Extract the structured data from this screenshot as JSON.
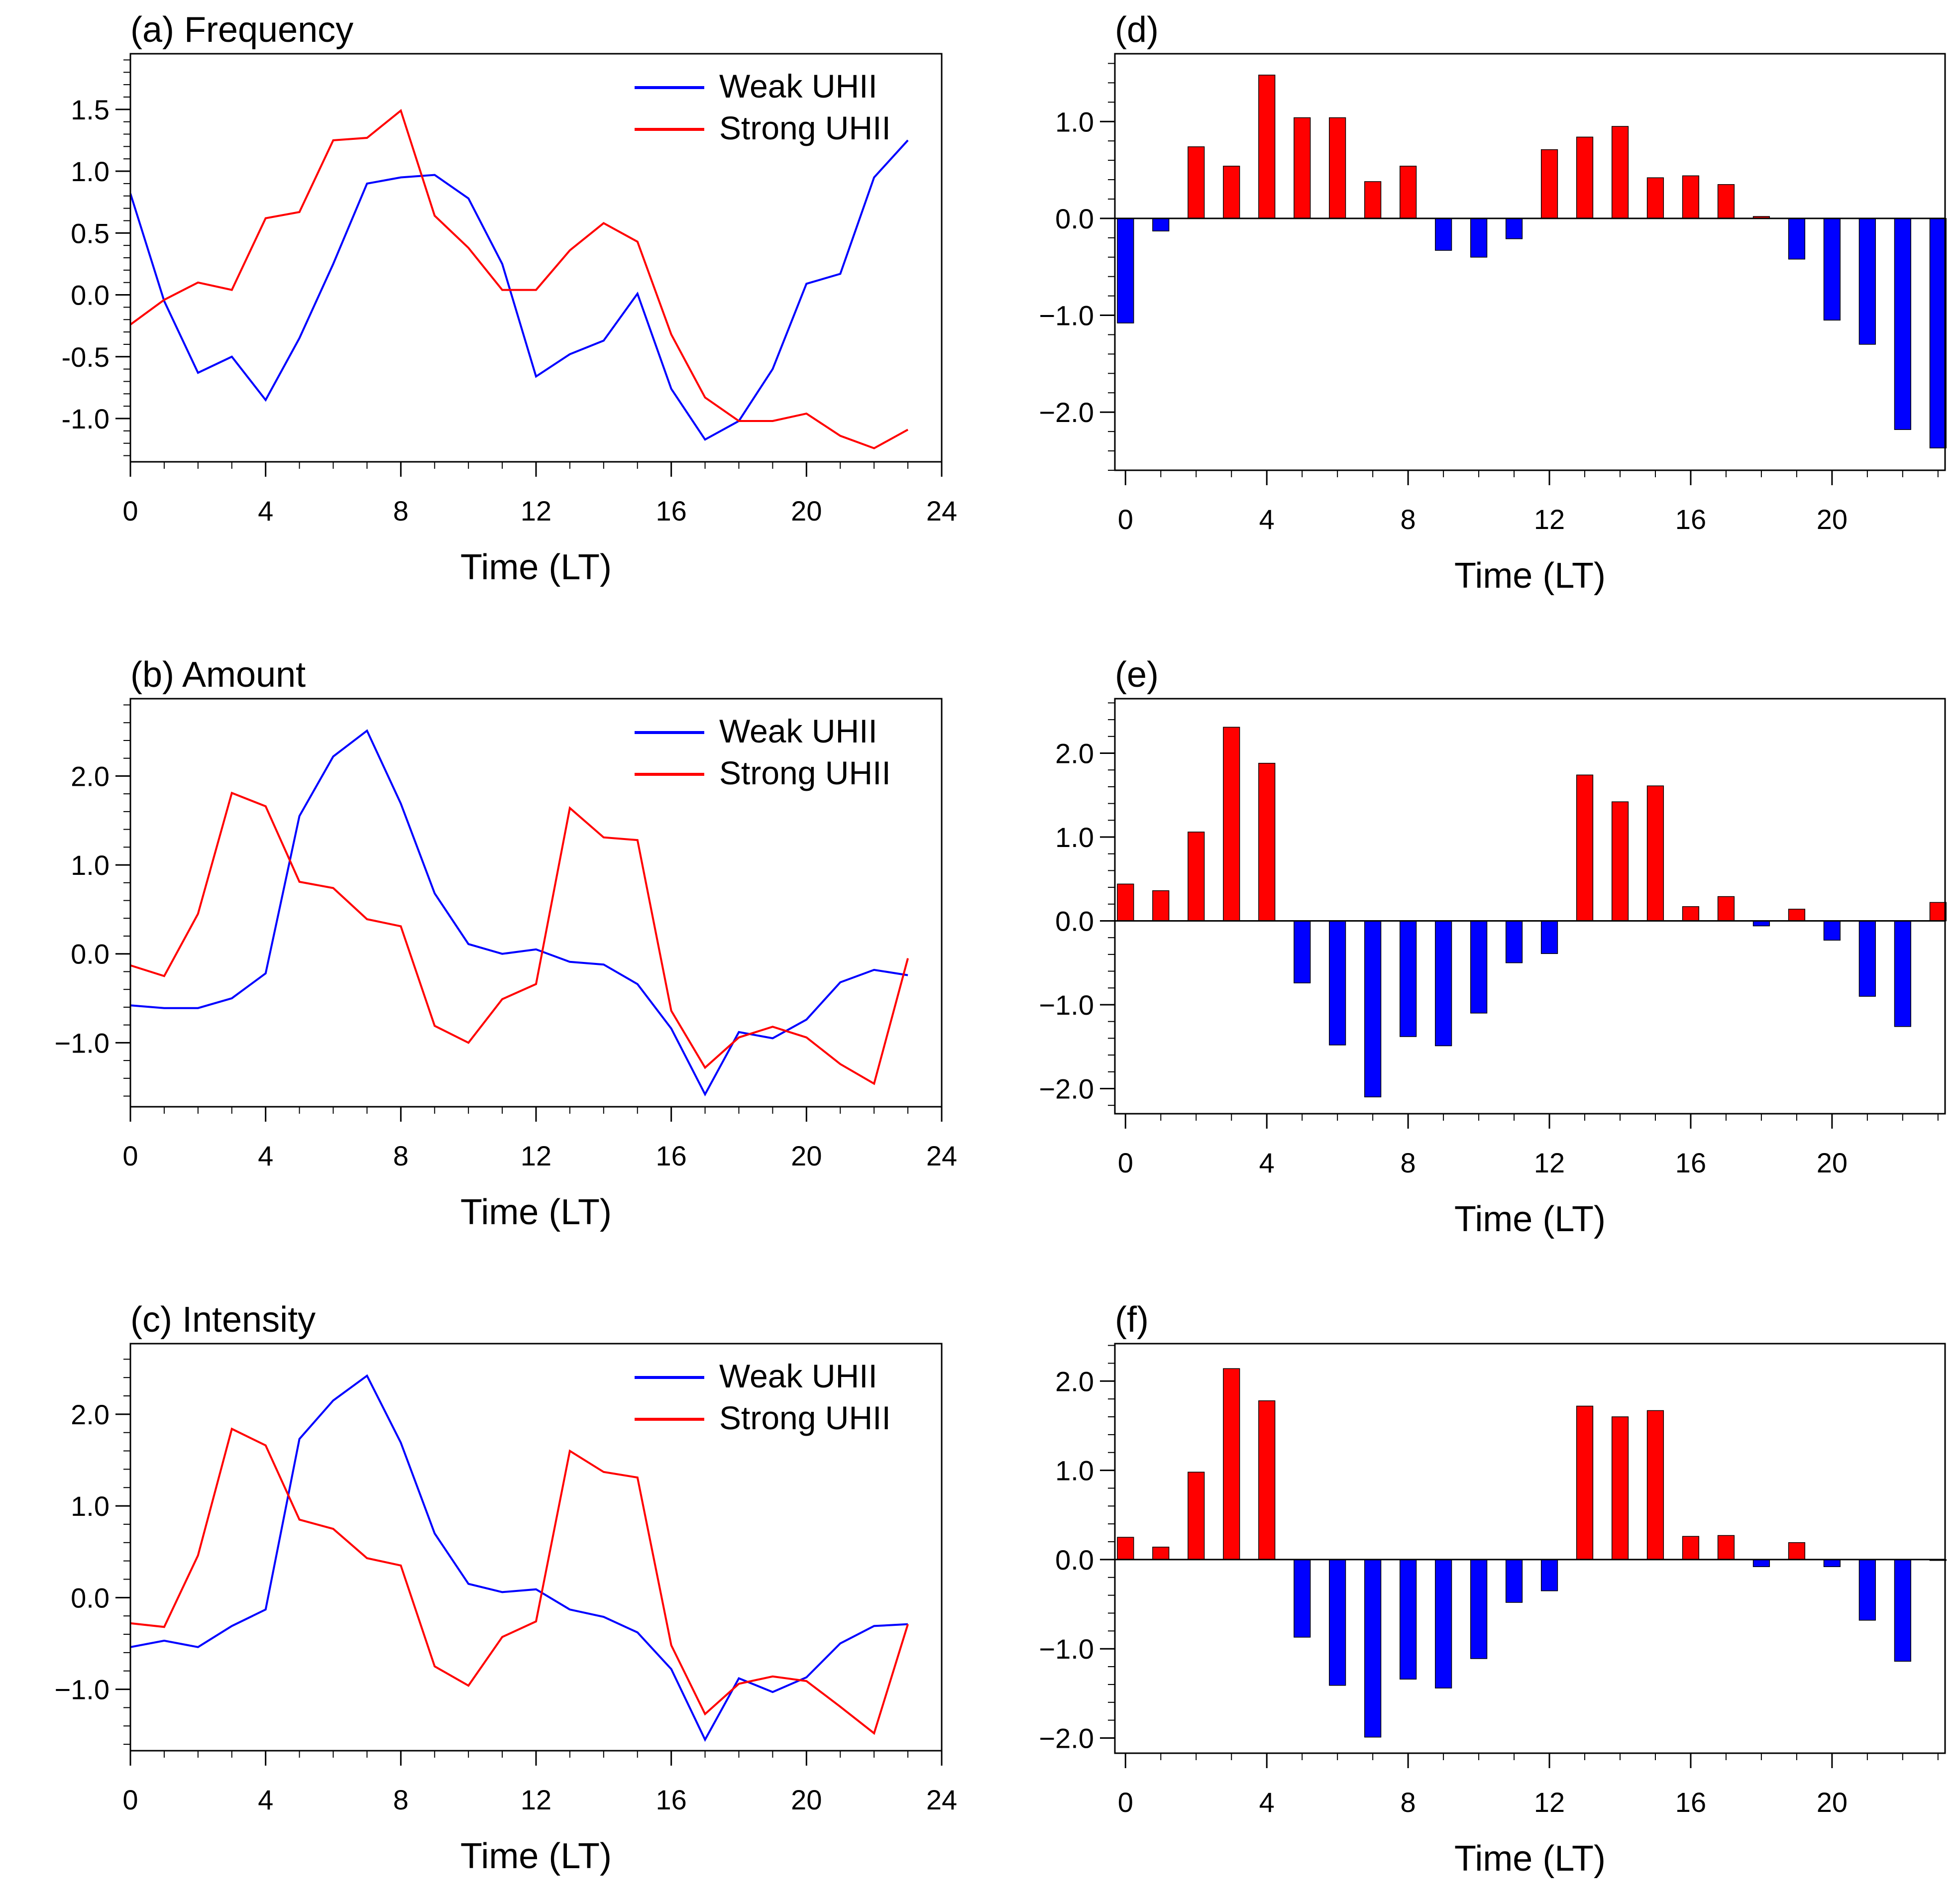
{
  "colors": {
    "weak": "#0000ff",
    "strong": "#ff0000",
    "positive_bar": "#ff0000",
    "negative_bar": "#0000ff"
  },
  "chart_data": [
    {
      "id": "a",
      "type": "line",
      "title": "(a) Frequency",
      "xlabel": "Time (LT)",
      "xlim": [
        0,
        24
      ],
      "xticks": [
        0,
        4,
        8,
        12,
        16,
        20,
        24
      ],
      "xtick_labels": [
        "0",
        "4",
        "8",
        "12",
        "16",
        "20",
        "24"
      ],
      "ylim": [
        -1.35,
        1.95
      ],
      "yticks": [
        -1.0,
        -0.5,
        0.0,
        0.5,
        1.0,
        1.5
      ],
      "ytick_labels": [
        "-1.0",
        "-0.5",
        "0.0",
        "0.5",
        "1.0",
        "1.5"
      ],
      "legend": "top-right",
      "series": [
        {
          "name": "Weak UHII",
          "color": "#0000ff",
          "x": [
            0,
            1,
            2,
            3,
            4,
            5,
            6,
            7,
            8,
            9,
            10,
            11,
            12,
            13,
            14,
            15,
            16,
            17,
            18,
            19,
            20,
            21,
            22,
            23
          ],
          "values": [
            0.82,
            -0.05,
            -0.63,
            -0.5,
            -0.85,
            -0.35,
            0.25,
            0.9,
            0.95,
            0.97,
            0.78,
            0.25,
            -0.66,
            -0.48,
            -0.37,
            0.01,
            -0.76,
            -1.17,
            -1.02,
            -0.6,
            0.09,
            0.17,
            0.95,
            1.25
          ]
        },
        {
          "name": "Strong UHII",
          "color": "#ff0000",
          "x": [
            0,
            1,
            2,
            3,
            4,
            5,
            6,
            7,
            8,
            9,
            10,
            11,
            12,
            13,
            14,
            15,
            16,
            17,
            18,
            19,
            20,
            21,
            22,
            23
          ],
          "values": [
            -0.24,
            -0.04,
            0.1,
            0.04,
            0.62,
            0.67,
            1.25,
            1.27,
            1.49,
            0.64,
            0.38,
            0.04,
            0.04,
            0.36,
            0.58,
            0.43,
            -0.32,
            -0.83,
            -1.02,
            -1.02,
            -0.96,
            -1.14,
            -1.24,
            -1.09
          ]
        }
      ]
    },
    {
      "id": "b",
      "type": "line",
      "title": "(b) Amount",
      "xlabel": "Time (LT)",
      "xlim": [
        0,
        24
      ],
      "xticks": [
        0,
        4,
        8,
        12,
        16,
        20,
        24
      ],
      "xtick_labels": [
        "0",
        "4",
        "8",
        "12",
        "16",
        "20",
        "24"
      ],
      "ylim": [
        -1.72,
        2.87
      ],
      "yticks": [
        -1.0,
        0.0,
        1.0,
        2.0
      ],
      "ytick_labels": [
        "−1.0",
        "0.0",
        "1.0",
        "2.0"
      ],
      "legend": "top-right",
      "series": [
        {
          "name": "Weak UHII",
          "color": "#0000ff",
          "x": [
            0,
            1,
            2,
            3,
            4,
            5,
            6,
            7,
            8,
            9,
            10,
            11,
            12,
            13,
            14,
            15,
            16,
            17,
            18,
            19,
            20,
            21,
            22,
            23
          ],
          "values": [
            -0.58,
            -0.61,
            -0.61,
            -0.5,
            -0.22,
            1.55,
            2.22,
            2.51,
            1.69,
            0.68,
            0.11,
            0.0,
            0.05,
            -0.09,
            -0.12,
            -0.34,
            -0.84,
            -1.58,
            -0.88,
            -0.95,
            -0.74,
            -0.32,
            -0.18,
            -0.24
          ]
        },
        {
          "name": "Strong UHII",
          "color": "#ff0000",
          "x": [
            0,
            1,
            2,
            3,
            4,
            5,
            6,
            7,
            8,
            9,
            10,
            11,
            12,
            13,
            14,
            15,
            16,
            17,
            18,
            19,
            20,
            21,
            22,
            23
          ],
          "values": [
            -0.13,
            -0.25,
            0.45,
            1.81,
            1.66,
            0.81,
            0.74,
            0.39,
            0.31,
            -0.81,
            -1.0,
            -0.51,
            -0.34,
            1.64,
            1.31,
            1.28,
            -0.64,
            -1.28,
            -0.94,
            -0.82,
            -0.94,
            -1.24,
            -1.46,
            -0.05
          ]
        }
      ]
    },
    {
      "id": "c",
      "type": "line",
      "title": "(c) Intensity",
      "xlabel": "Time (LT)",
      "xlim": [
        0,
        24
      ],
      "xticks": [
        0,
        4,
        8,
        12,
        16,
        20,
        24
      ],
      "xtick_labels": [
        "0",
        "4",
        "8",
        "12",
        "16",
        "20",
        "24"
      ],
      "ylim": [
        -1.67,
        2.77
      ],
      "yticks": [
        -1.0,
        0.0,
        1.0,
        2.0
      ],
      "ytick_labels": [
        "−1.0",
        "0.0",
        "1.0",
        "2.0"
      ],
      "legend": "top-right",
      "series": [
        {
          "name": "Weak UHII",
          "color": "#0000ff",
          "x": [
            0,
            1,
            2,
            3,
            4,
            5,
            6,
            7,
            8,
            9,
            10,
            11,
            12,
            13,
            14,
            15,
            16,
            17,
            18,
            19,
            20,
            21,
            22,
            23
          ],
          "values": [
            -0.54,
            -0.47,
            -0.54,
            -0.31,
            -0.13,
            1.73,
            2.15,
            2.42,
            1.69,
            0.7,
            0.15,
            0.06,
            0.09,
            -0.13,
            -0.21,
            -0.38,
            -0.78,
            -1.55,
            -0.88,
            -1.03,
            -0.87,
            -0.5,
            -0.31,
            -0.29
          ]
        },
        {
          "name": "Strong UHII",
          "color": "#ff0000",
          "x": [
            0,
            1,
            2,
            3,
            4,
            5,
            6,
            7,
            8,
            9,
            10,
            11,
            12,
            13,
            14,
            15,
            16,
            17,
            18,
            19,
            20,
            21,
            22,
            23
          ],
          "values": [
            -0.28,
            -0.32,
            0.46,
            1.84,
            1.66,
            0.85,
            0.75,
            0.43,
            0.35,
            -0.75,
            -0.96,
            -0.43,
            -0.26,
            1.6,
            1.37,
            1.31,
            -0.52,
            -1.27,
            -0.94,
            -0.86,
            -0.91,
            -1.19,
            -1.48,
            -0.29
          ]
        }
      ]
    },
    {
      "id": "d",
      "type": "bar",
      "title": "(d)",
      "xlabel": "Time (LT)",
      "xlim": [
        -0.3,
        23.2
      ],
      "xticks": [
        0,
        4,
        8,
        12,
        16,
        20
      ],
      "xtick_labels": [
        "0",
        "4",
        "8",
        "12",
        "16",
        "20"
      ],
      "ylim": [
        -2.6,
        1.7
      ],
      "yticks": [
        -2.0,
        -1.0,
        0.0,
        1.0
      ],
      "ytick_labels": [
        "−2.0",
        "−1.0",
        "0.0",
        "1.0"
      ],
      "categories": [
        0,
        1,
        2,
        3,
        4,
        5,
        6,
        7,
        8,
        9,
        10,
        11,
        12,
        13,
        14,
        15,
        16,
        17,
        18,
        19,
        20,
        21,
        22,
        23
      ],
      "values": [
        -1.08,
        -0.13,
        0.74,
        0.54,
        1.48,
        1.04,
        1.04,
        0.38,
        0.54,
        -0.33,
        -0.4,
        -0.21,
        0.71,
        0.84,
        0.95,
        0.42,
        0.44,
        0.35,
        0.02,
        -0.42,
        -1.05,
        -1.3,
        -2.18,
        -2.37
      ]
    },
    {
      "id": "e",
      "type": "bar",
      "title": "(e)",
      "xlabel": "Time (LT)",
      "xlim": [
        -0.3,
        23.2
      ],
      "xticks": [
        0,
        4,
        8,
        12,
        16,
        20
      ],
      "xtick_labels": [
        "0",
        "4",
        "8",
        "12",
        "16",
        "20"
      ],
      "ylim": [
        -2.3,
        2.65
      ],
      "yticks": [
        -2.0,
        -1.0,
        0.0,
        1.0,
        2.0
      ],
      "ytick_labels": [
        "−2.0",
        "−1.0",
        "0.0",
        "1.0",
        "2.0"
      ],
      "categories": [
        0,
        1,
        2,
        3,
        4,
        5,
        6,
        7,
        8,
        9,
        10,
        11,
        12,
        13,
        14,
        15,
        16,
        17,
        18,
        19,
        20,
        21,
        22,
        23
      ],
      "values": [
        0.44,
        0.36,
        1.06,
        2.31,
        1.88,
        -0.74,
        -1.48,
        -2.1,
        -1.38,
        -1.49,
        -1.1,
        -0.5,
        -0.39,
        1.74,
        1.42,
        1.61,
        0.17,
        0.29,
        -0.06,
        0.14,
        -0.23,
        -0.9,
        -1.26,
        0.22
      ]
    },
    {
      "id": "f",
      "type": "bar",
      "title": "(f)",
      "xlabel": "Time (LT)",
      "xlim": [
        -0.3,
        23.2
      ],
      "xticks": [
        0,
        4,
        8,
        12,
        16,
        20
      ],
      "xtick_labels": [
        "0",
        "4",
        "8",
        "12",
        "16",
        "20"
      ],
      "ylim": [
        -2.17,
        2.42
      ],
      "yticks": [
        -2.0,
        -1.0,
        0.0,
        1.0,
        2.0
      ],
      "ytick_labels": [
        "−2.0",
        "−1.0",
        "0.0",
        "1.0",
        "2.0"
      ],
      "categories": [
        0,
        1,
        2,
        3,
        4,
        5,
        6,
        7,
        8,
        9,
        10,
        11,
        12,
        13,
        14,
        15,
        16,
        17,
        18,
        19,
        20,
        21,
        22,
        23
      ],
      "values": [
        0.25,
        0.14,
        0.98,
        2.14,
        1.78,
        -0.87,
        -1.41,
        -1.99,
        -1.34,
        -1.44,
        -1.11,
        -0.48,
        -0.35,
        1.72,
        1.6,
        1.67,
        0.26,
        0.27,
        -0.08,
        0.19,
        -0.08,
        -0.68,
        -1.14,
        -0.01
      ]
    }
  ]
}
